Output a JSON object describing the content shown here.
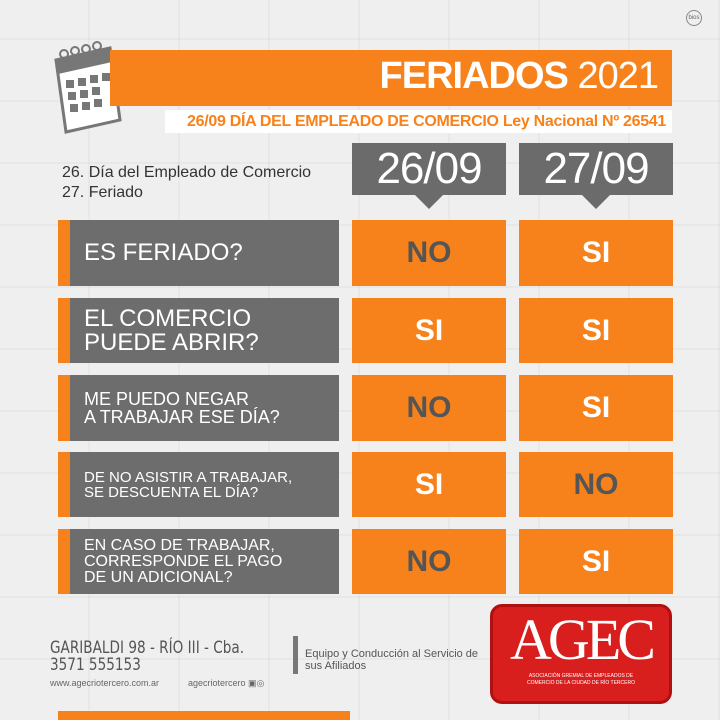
{
  "brand": {
    "bios": "bios",
    "logo_text": "AGEC",
    "logo_caption": "ASOCIACIÓN GREMIAL DE EMPLEADOS DE COMERCIO DE LA CIUDAD DE RÍO TERCERO"
  },
  "header": {
    "title": "FERIADOS",
    "year": "2021",
    "subtitle": "26/09 DÍA DEL EMPLEADO DE COMERCIO Ley Nacional Nº 26541"
  },
  "notes": [
    "26. Día del Empleado de Comercio",
    "27. Feriado"
  ],
  "columns": [
    "26/09",
    "27/09"
  ],
  "rows": [
    {
      "question": "ES FERIADO?",
      "answers": [
        "NO",
        "SI"
      ]
    },
    {
      "question": "EL COMERCIO\nPUEDE ABRIR?",
      "answers": [
        "SI",
        "SI"
      ]
    },
    {
      "question": "ME PUEDO NEGAR\nA TRABAJAR ESE DÍA?",
      "answers": [
        "NO",
        "SI"
      ]
    },
    {
      "question": "DE NO ASISTIR A TRABAJAR,\nSE DESCUENTA EL DÍA?",
      "answers": [
        "SI",
        "NO"
      ]
    },
    {
      "question": "EN CASO DE TRABAJAR,\nCORRESPONDE EL PAGO\nDE UN ADICIONAL?",
      "answers": [
        "NO",
        "SI"
      ]
    }
  ],
  "footer": {
    "address": "GARIBALDI 98 - RÍO III - Cba.",
    "phone": "3571 555153",
    "website": "www.agecriotercero.com.ar",
    "social": "agecriotercero",
    "motto": "Equipo y Conducción al Servicio de sus Afiliados"
  },
  "colors": {
    "orange": "#f7821b",
    "gray": "#6d6d6d",
    "red": "#d91e1e"
  }
}
